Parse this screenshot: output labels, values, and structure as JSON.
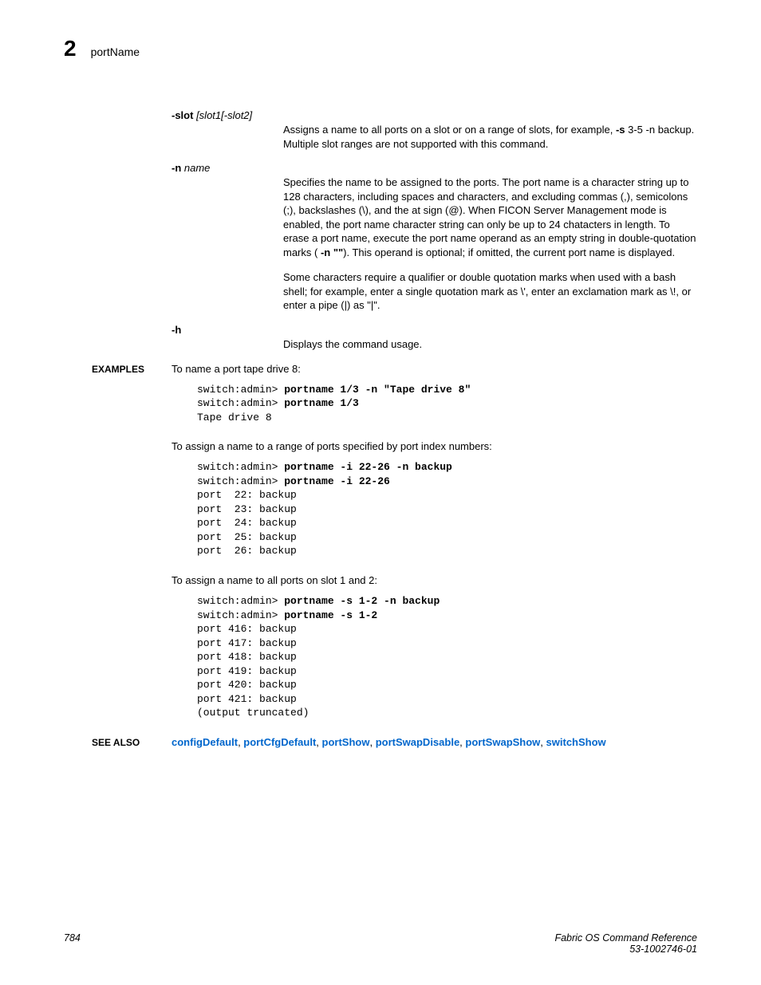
{
  "header": {
    "chapter": "2",
    "title": "portName"
  },
  "options": {
    "slot": {
      "label_bold": "-slot",
      "label_italic": " [slot1[-slot2]",
      "desc": "Assigns a name to all ports on a slot or on a range of slots, for example, ",
      "desc_bold": "-s",
      "desc_after": " 3-5 -n backup. Multiple slot ranges are not supported with this command."
    },
    "n": {
      "label_bold": "-n",
      "label_italic": " name",
      "desc1_a": "Specifies the name to be assigned to the ports. The port name is a character string up to 128 characters, including spaces and characters, and excluding commas (,), semicolons (;), backslashes (\\), and the at sign (@). When FICON Server Management mode is enabled, the port name character string can only be up to 24 chatacters in length. To erase a port name, execute the port name operand as an empty string in double-quotation marks ( ",
      "desc1_bold": "-n \"\"",
      "desc1_b": "). This operand is optional; if omitted, the current port name is displayed.",
      "desc2": "Some characters require a qualifier or double quotation marks when used with a bash shell; for example, enter a single quotation mark as \\', enter an exclamation mark as \\!, or enter a pipe (|) as \"|\"."
    },
    "h": {
      "label_bold": "-h",
      "desc": "Displays the command usage."
    }
  },
  "examples": {
    "label": "EXAMPLES",
    "ex1_intro": "To name a port tape drive 8:",
    "ex1_lines": [
      {
        "prompt": "switch:admin> ",
        "cmd": "portname 1/3 -n \"Tape drive 8\""
      },
      {
        "prompt": "switch:admin> ",
        "cmd": "portname 1/3"
      },
      {
        "out": "Tape drive 8"
      }
    ],
    "ex2_intro": "To assign a name to a range of ports specified by port index numbers:",
    "ex2_lines": [
      {
        "prompt": "switch:admin> ",
        "cmd": "portname -i 22-26 -n backup"
      },
      {
        "prompt": "switch:admin> ",
        "cmd": "portname -i 22-26"
      },
      {
        "out": "port  22: backup"
      },
      {
        "out": "port  23: backup"
      },
      {
        "out": "port  24: backup"
      },
      {
        "out": "port  25: backup"
      },
      {
        "out": "port  26: backup"
      }
    ],
    "ex3_intro": "To assign a name to all ports on slot 1 and 2:",
    "ex3_lines": [
      {
        "prompt": "switch:admin> ",
        "cmd": "portname -s 1-2 -n backup"
      },
      {
        "prompt": "switch:admin> ",
        "cmd": "portname -s 1-2"
      },
      {
        "out": "port 416: backup"
      },
      {
        "out": "port 417: backup"
      },
      {
        "out": "port 418: backup"
      },
      {
        "out": "port 419: backup"
      },
      {
        "out": "port 420: backup"
      },
      {
        "out": "port 421: backup"
      },
      {
        "out": "(output truncated)"
      }
    ]
  },
  "see_also": {
    "label": "SEE ALSO",
    "links": [
      "configDefault",
      "portCfgDefault",
      "portShow",
      "portSwapDisable",
      "portSwapShow",
      "switchShow"
    ]
  },
  "footer": {
    "page_num": "784",
    "right1": "Fabric OS Command Reference",
    "right2": "53-1002746-01"
  }
}
